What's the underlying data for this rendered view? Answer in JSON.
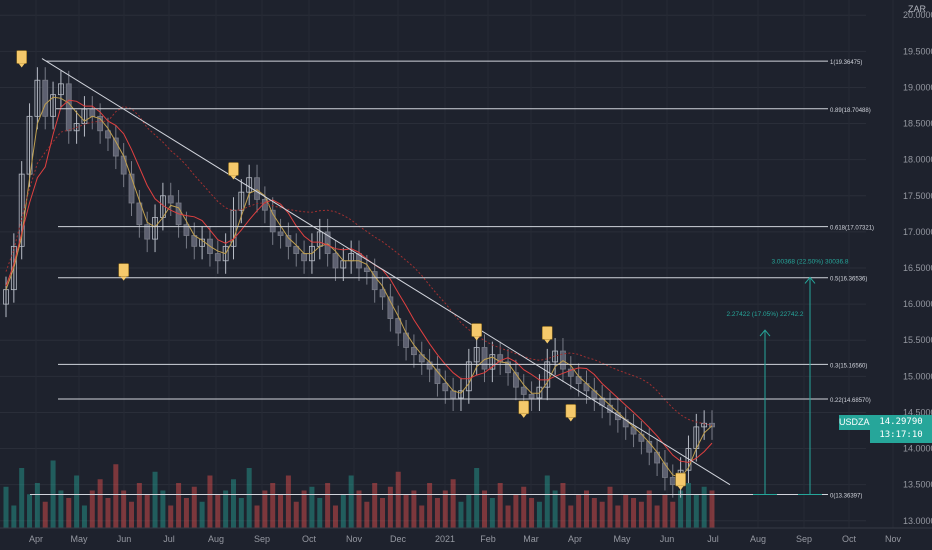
{
  "chart_data": {
    "type": "candlestick",
    "symbol": "USDZAR",
    "currency": "ZAR",
    "last_price": "14.29790",
    "countdown": "13:17:10",
    "x_ticks": [
      "Apr",
      "May",
      "Jun",
      "Jul",
      "Aug",
      "Sep",
      "Oct",
      "Nov",
      "Dec",
      "2021",
      "Feb",
      "Mar",
      "Apr",
      "May",
      "Jun",
      "Jul",
      "Aug",
      "Sep",
      "Oct",
      "Nov"
    ],
    "y_ticks": [
      "20.00000",
      "19.50000",
      "19.00000",
      "18.50000",
      "18.00000",
      "17.50000",
      "17.00000",
      "16.50000",
      "16.00000",
      "15.50000",
      "15.00000",
      "14.50000",
      "14.00000",
      "13.50000",
      "13.00000"
    ],
    "ylim": [
      12.9,
      20.1
    ],
    "fibonacci_levels": [
      {
        "label": "1(19.36475)",
        "value": 19.36475
      },
      {
        "label": "0.89(18.70488)",
        "value": 18.70488
      },
      {
        "label": "0.618(17.07321)",
        "value": 17.07321
      },
      {
        "label": "0.5(16.36536)",
        "value": 16.36536
      },
      {
        "label": "0.3(15.16560)",
        "value": 15.1656
      },
      {
        "label": "0.22(14.68570)",
        "value": 14.6857
      },
      {
        "label": "0(13.36397)",
        "value": 13.36397
      }
    ],
    "measure_annotations": [
      {
        "label": "2.27422 (17.05%) 22742.2",
        "from": 13.36397,
        "to": 15.64
      },
      {
        "label": "3.00368 (22.50%) 30036.8",
        "from": 13.36397,
        "to": 16.37
      }
    ],
    "trendline": {
      "start": 19.4,
      "end": 13.5
    },
    "closes": [
      16.2,
      16.8,
      17.8,
      18.6,
      19.1,
      18.6,
      18.9,
      19.05,
      18.4,
      18.5,
      18.7,
      18.6,
      18.4,
      18.3,
      18.05,
      17.8,
      17.4,
      17.1,
      16.9,
      17.2,
      17.5,
      17.4,
      17.1,
      16.95,
      16.8,
      16.9,
      16.7,
      16.6,
      16.8,
      17.3,
      17.55,
      17.75,
      17.45,
      17.3,
      17.0,
      16.95,
      16.8,
      16.7,
      16.6,
      16.8,
      17.0,
      16.7,
      16.5,
      16.6,
      16.7,
      16.5,
      16.45,
      16.2,
      16.1,
      15.8,
      15.6,
      15.4,
      15.3,
      15.2,
      15.1,
      14.9,
      14.8,
      14.7,
      14.8,
      15.2,
      15.4,
      15.1,
      15.3,
      15.2,
      15.05,
      14.85,
      14.75,
      14.7,
      14.85,
      15.2,
      15.35,
      15.1,
      15.0,
      14.9,
      14.8,
      14.7,
      14.6,
      14.5,
      14.4,
      14.3,
      14.2,
      14.1,
      13.95,
      13.8,
      13.6,
      13.5,
      13.7,
      14.0,
      14.3,
      14.35,
      14.3
    ],
    "volumes": [
      0.55,
      0.3,
      0.8,
      0.45,
      0.6,
      0.35,
      0.9,
      0.5,
      0.4,
      0.7,
      0.3,
      0.5,
      0.65,
      0.4,
      0.85,
      0.5,
      0.35,
      0.6,
      0.45,
      0.75,
      0.5,
      0.3,
      0.6,
      0.4,
      0.55,
      0.35,
      0.7,
      0.45,
      0.5,
      0.65,
      0.4,
      0.8,
      0.3,
      0.5,
      0.6,
      0.45,
      0.7,
      0.35,
      0.5,
      0.55,
      0.4,
      0.6,
      0.3,
      0.45,
      0.7,
      0.5,
      0.35,
      0.6,
      0.4,
      0.55,
      0.75,
      0.45,
      0.5,
      0.3,
      0.6,
      0.4,
      0.5,
      0.65,
      0.35,
      0.45,
      0.8,
      0.5,
      0.4,
      0.6,
      0.3,
      0.45,
      0.55,
      0.4,
      0.35,
      0.7,
      0.5,
      0.6,
      0.3,
      0.45,
      0.5,
      0.4,
      0.35,
      0.55,
      0.3,
      0.45,
      0.4,
      0.35,
      0.5,
      0.3,
      0.45,
      0.35,
      0.5,
      0.6,
      0.45,
      0.55,
      0.5
    ],
    "markers": [
      {
        "index": 2,
        "value": 19.4
      },
      {
        "index": 29,
        "value": 17.85
      },
      {
        "index": 15,
        "value": 16.45
      },
      {
        "index": 60,
        "value": 15.62
      },
      {
        "index": 66,
        "value": 14.55
      },
      {
        "index": 72,
        "value": 14.5
      },
      {
        "index": 69,
        "value": 15.58
      },
      {
        "index": 86,
        "value": 13.55
      }
    ]
  }
}
